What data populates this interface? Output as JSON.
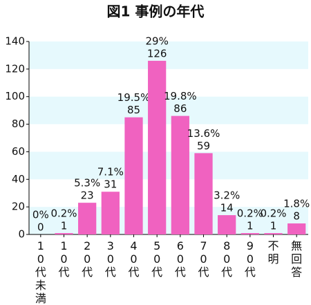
{
  "chart_data": {
    "type": "bar",
    "title": "図1 事例の年代",
    "categories": [
      "10代未満",
      "10代",
      "20代",
      "30代",
      "40代",
      "50代",
      "60代",
      "70代",
      "80代",
      "90代",
      "不明",
      "無回答"
    ],
    "values": [
      0,
      1,
      23,
      31,
      85,
      126,
      86,
      59,
      14,
      1,
      1,
      8
    ],
    "color": "#f062c0",
    "percent": {
      "values": [
        0,
        0.2,
        5.3,
        7.1,
        19.5,
        29,
        19.8,
        13.6,
        3.2,
        0.2,
        0.2,
        1.8
      ],
      "value_labels": [
        "0%",
        "0.2%",
        "5.3%",
        "7.1%",
        "19.5%",
        "29%",
        "19.8%",
        "13.6%",
        "3.2%",
        "0.2%",
        "0.2%",
        "1.8%"
      ]
    },
    "ylim": [
      0,
      140
    ],
    "yticks": [
      0,
      20,
      40,
      60,
      80,
      100,
      120,
      140
    ],
    "grid": true
  }
}
